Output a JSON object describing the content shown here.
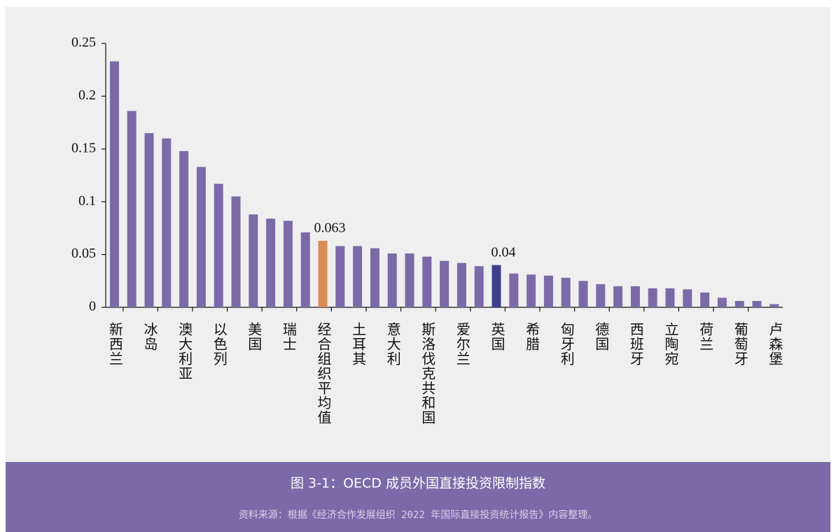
{
  "chart_data": {
    "type": "bar",
    "caption": "图 3-1：OECD 成员外国直接投资限制指数",
    "source": "资料来源：根据《经济合作发展组织 2022 年国际直接投资统计报告》内容整理。",
    "categories": [
      "新西兰",
      null,
      "冰岛",
      null,
      "澳大利亚",
      null,
      "以色列",
      null,
      "美国",
      null,
      "瑞士",
      null,
      "经合组织平均值",
      null,
      "土耳其",
      null,
      "意大利",
      null,
      "斯洛伐克共和国",
      null,
      "爱尔兰",
      null,
      "英国",
      null,
      "希腊",
      null,
      "匈牙利",
      null,
      "德国",
      null,
      "西班牙",
      null,
      "立陶宛",
      null,
      "荷兰",
      null,
      "葡萄牙",
      null,
      "卢森堡"
    ],
    "values": [
      0.233,
      0.186,
      0.165,
      0.16,
      0.148,
      0.133,
      0.117,
      0.105,
      0.088,
      0.084,
      0.082,
      0.071,
      0.063,
      0.058,
      0.058,
      0.056,
      0.051,
      0.051,
      0.048,
      0.044,
      0.042,
      0.039,
      0.04,
      0.032,
      0.031,
      0.03,
      0.028,
      0.025,
      0.022,
      0.02,
      0.02,
      0.018,
      0.018,
      0.017,
      0.014,
      0.009,
      0.006,
      0.006,
      0.003
    ],
    "value_labels": [
      null,
      null,
      null,
      null,
      null,
      null,
      null,
      null,
      null,
      null,
      null,
      null,
      "0.063",
      null,
      null,
      null,
      null,
      null,
      null,
      null,
      null,
      null,
      "0.04",
      null,
      null,
      null,
      null,
      null,
      null,
      null,
      null,
      null,
      null,
      null,
      null,
      null,
      null,
      null,
      null
    ],
    "colors": [
      "#7b6aa8",
      "#7b6aa8",
      "#7b6aa8",
      "#7b6aa8",
      "#7b6aa8",
      "#7b6aa8",
      "#7b6aa8",
      "#7b6aa8",
      "#7b6aa8",
      "#7b6aa8",
      "#7b6aa8",
      "#7b6aa8",
      "#d98c56",
      "#7b6aa8",
      "#7b6aa8",
      "#7b6aa8",
      "#7b6aa8",
      "#7b6aa8",
      "#7b6aa8",
      "#7b6aa8",
      "#7b6aa8",
      "#7b6aa8",
      "#3d3f8a",
      "#7b6aa8",
      "#7b6aa8",
      "#7b6aa8",
      "#7b6aa8",
      "#7b6aa8",
      "#7b6aa8",
      "#7b6aa8",
      "#7b6aa8",
      "#7b6aa8",
      "#7b6aa8",
      "#7b6aa8",
      "#7b6aa8",
      "#7b6aa8",
      "#7b6aa8",
      "#7b6aa8",
      "#7b6aa8"
    ],
    "ylim": [
      0,
      0.25
    ],
    "yticks": [
      0,
      0.05,
      0.1,
      0.15,
      0.2,
      0.25
    ],
    "grid": false
  }
}
